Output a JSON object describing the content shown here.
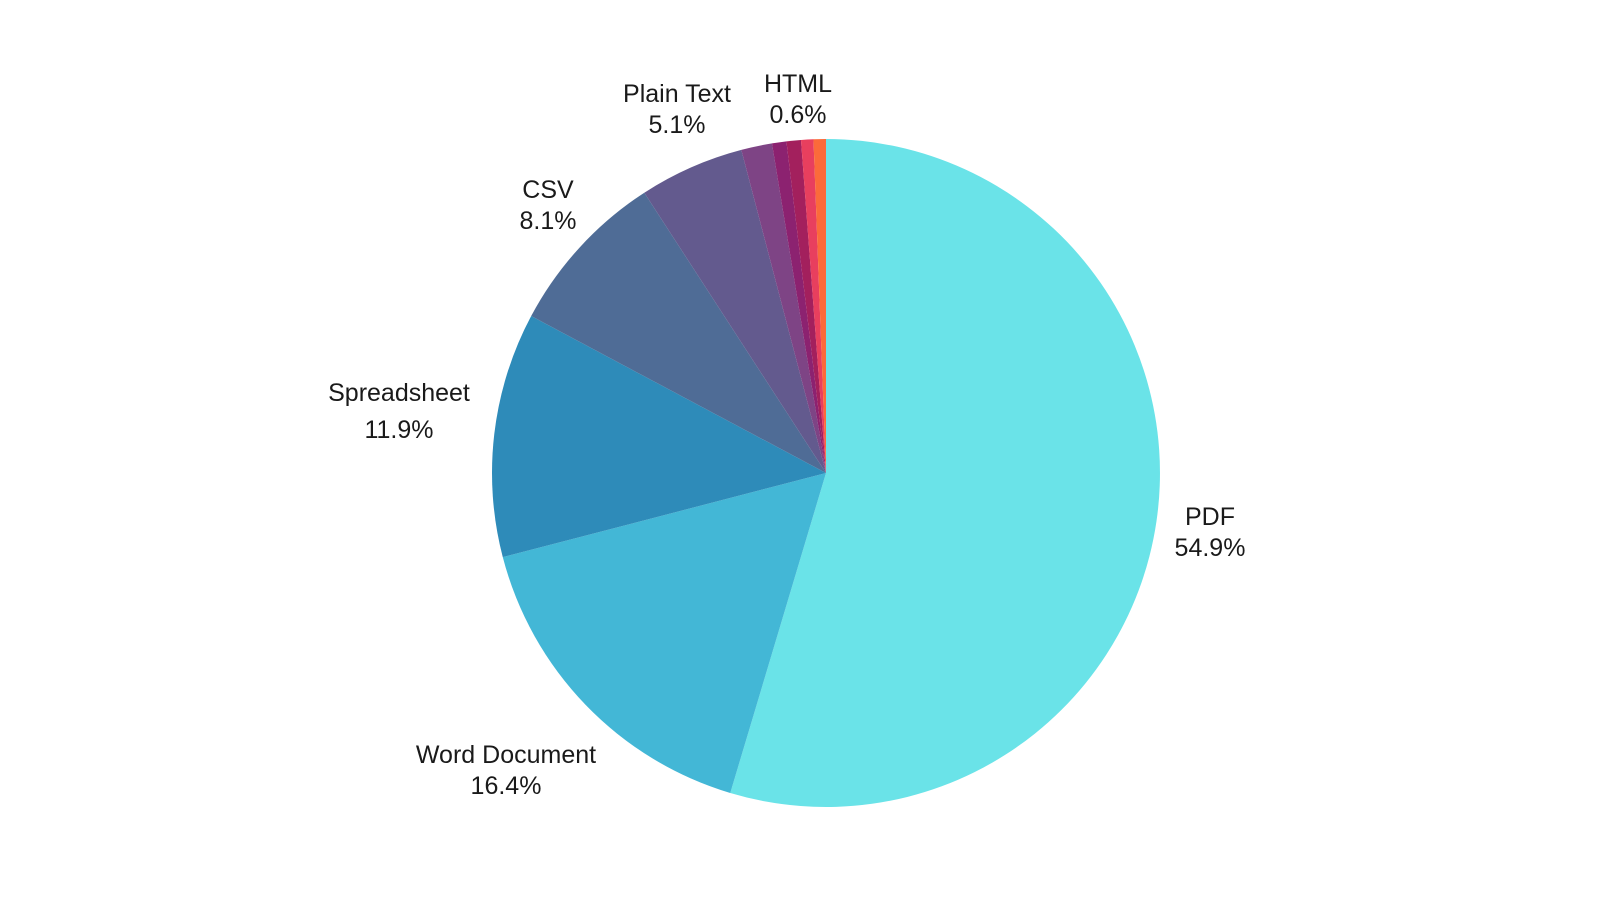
{
  "chart_data": {
    "type": "pie",
    "slices": [
      {
        "label": "PDF",
        "value": 54.9,
        "display": "54.9%",
        "color": "#6ae3e8"
      },
      {
        "label": "Word Document",
        "value": 16.4,
        "display": "16.4%",
        "color": "#43b7d6"
      },
      {
        "label": "Spreadsheet",
        "value": 11.9,
        "display": "11.9%",
        "color": "#2e8bb9"
      },
      {
        "label": "CSV",
        "value": 8.1,
        "display": "8.1%",
        "color": "#4f6c96"
      },
      {
        "label": "Plain Text",
        "value": 5.1,
        "display": "5.1%",
        "color": "#635a8e"
      },
      {
        "label": "",
        "value": 1.5,
        "display": "",
        "color": "#7e4485"
      },
      {
        "label": "",
        "value": 0.7,
        "display": "",
        "color": "#8c2270"
      },
      {
        "label": "",
        "value": 0.7,
        "display": "",
        "color": "#a3205d"
      },
      {
        "label": "",
        "value": 0.6,
        "display": "",
        "color": "#e83f5e"
      },
      {
        "label": "HTML",
        "value": 0.6,
        "display": "0.6%",
        "color": "#fb6a3a"
      }
    ],
    "start": "top",
    "direction": "clockwise"
  }
}
